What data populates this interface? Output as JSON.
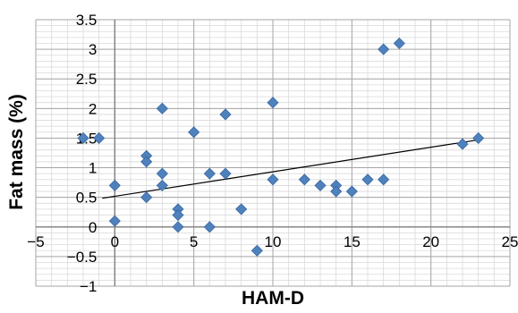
{
  "chart_data": {
    "type": "scatter",
    "title": "",
    "xlabel": "HAM-D",
    "ylabel": "Fat mass (%)",
    "xlim": [
      -5,
      25
    ],
    "ylim": [
      -1,
      3.5
    ],
    "x_major_step": 5,
    "y_major_step": 0.5,
    "x_ticks": [
      "−5",
      "0",
      "5",
      "10",
      "15",
      "20",
      "25"
    ],
    "y_ticks": [
      "−1",
      "−0.5",
      "0",
      "0.5",
      "1",
      "1.5",
      "2",
      "2.5",
      "3",
      "3.5"
    ],
    "grid": true,
    "legend": "none",
    "marker": "diamond",
    "colors": {
      "marker": "#4F81BD",
      "marker_edge": "#3A67A0",
      "trendline": "#000000",
      "grid": "#D9D9D9",
      "axis": "#808080"
    },
    "series": [
      {
        "points": [
          [
            -2,
            1.5
          ],
          [
            -1,
            1.5
          ],
          [
            0,
            0.7
          ],
          [
            0,
            0.1
          ],
          [
            2,
            1.2
          ],
          [
            2,
            1.1
          ],
          [
            2,
            0.5
          ],
          [
            3,
            2.0
          ],
          [
            3,
            0.9
          ],
          [
            3,
            0.7
          ],
          [
            4,
            0.3
          ],
          [
            4,
            0.2
          ],
          [
            4,
            0.0
          ],
          [
            5,
            1.6
          ],
          [
            6,
            0.9
          ],
          [
            6,
            0.0
          ],
          [
            7,
            1.9
          ],
          [
            7,
            0.9
          ],
          [
            8,
            0.3
          ],
          [
            9,
            -0.4
          ],
          [
            10,
            2.1
          ],
          [
            10,
            0.8
          ],
          [
            12,
            0.8
          ],
          [
            13,
            0.7
          ],
          [
            14,
            0.7
          ],
          [
            14,
            0.6
          ],
          [
            15,
            0.6
          ],
          [
            16,
            0.8
          ],
          [
            17,
            3.0
          ],
          [
            17,
            0.8
          ],
          [
            18,
            3.1
          ],
          [
            22,
            1.4
          ],
          [
            23,
            1.5
          ]
        ]
      }
    ],
    "trendline": {
      "type": "linear",
      "from": [
        0,
        0.52
      ],
      "to": [
        23,
        1.47
      ]
    }
  }
}
